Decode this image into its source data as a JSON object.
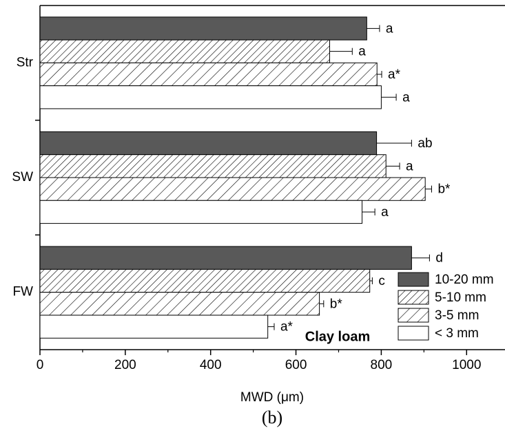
{
  "chart_data": {
    "type": "bar",
    "orientation": "horizontal",
    "x_label": "MWD (μm)",
    "panel_label": "(b)",
    "annotation": "Clay loam",
    "categories": [
      "Str",
      "SW",
      "FW"
    ],
    "series": [
      {
        "name": "10-20 mm",
        "color": "#595959",
        "values": [
          766,
          789,
          871
        ],
        "errors": [
          30,
          82,
          42
        ],
        "labels": [
          "a",
          "ab",
          "d"
        ]
      },
      {
        "name": "5-10 mm",
        "color": "#ffffff",
        "values": [
          679,
          811,
          773
        ],
        "errors": [
          53,
          32,
          6
        ],
        "labels": [
          "a",
          "a",
          "c"
        ]
      },
      {
        "name": "3-5 mm",
        "color": "#ffffff",
        "values": [
          790,
          903,
          655
        ],
        "errors": [
          11,
          15,
          10
        ],
        "labels": [
          "a*",
          "b*",
          "b*"
        ]
      },
      {
        "name": "< 3 mm",
        "color": "#ffffff",
        "values": [
          800,
          755,
          534
        ],
        "errors": [
          35,
          30,
          15
        ],
        "labels": [
          "a",
          "a",
          "a*"
        ]
      }
    ],
    "xlim": [
      0,
      1090
    ],
    "xticks": [
      0,
      200,
      400,
      600,
      800,
      1000
    ],
    "legend": "lower right"
  }
}
